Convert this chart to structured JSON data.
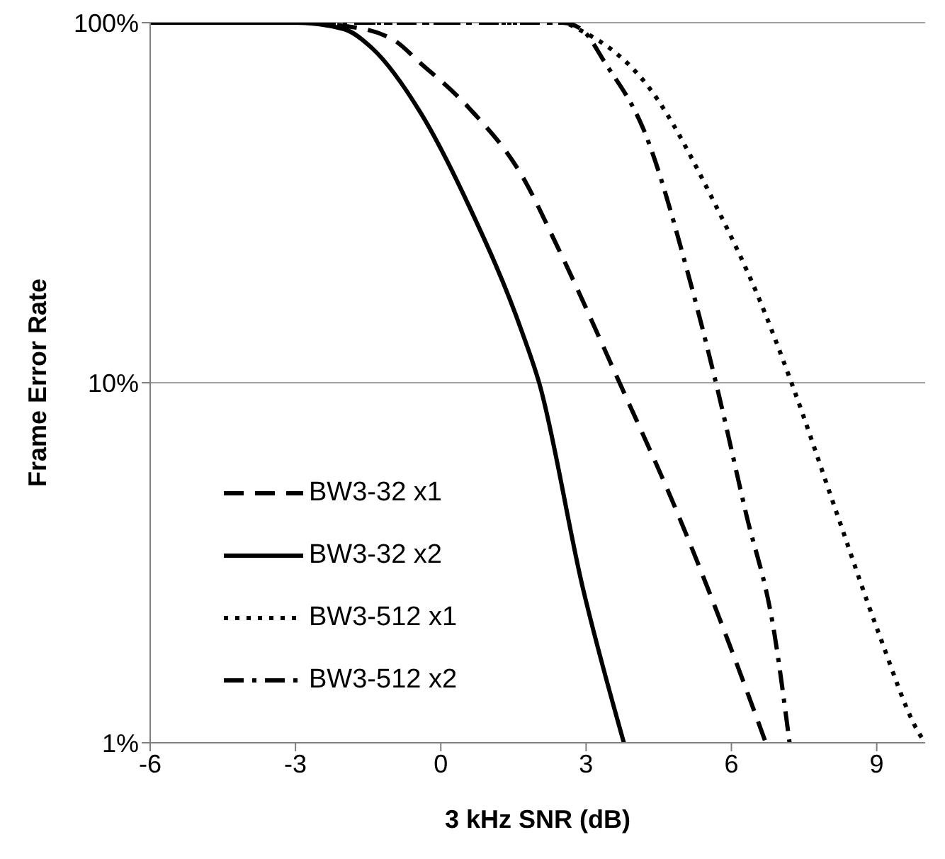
{
  "chart_data": {
    "type": "line",
    "xlabel": "3 kHz SNR (dB)",
    "ylabel": "Frame Error Rate",
    "log": "y",
    "grid": "y",
    "legend": "bottom left",
    "marker": "none",
    "xlim": [
      -6,
      10
    ],
    "xticks": [
      -6,
      -3,
      0,
      3,
      6,
      9
    ],
    "ylim": [
      1,
      100
    ],
    "yticks": [
      {
        "value": 1,
        "label": "1%"
      },
      {
        "value": 10,
        "label": "10%"
      },
      {
        "value": 100,
        "label": "100%"
      }
    ],
    "series": [
      {
        "name": "BW3-32 x1",
        "color": "#000000",
        "line_style": "dashed",
        "x": [
          -6,
          -3,
          -2,
          -1,
          -0.41,
          0.58,
          1.68,
          2.4,
          3.69,
          4.9,
          5.88,
          6.71
        ],
        "values": [
          100,
          100,
          98,
          90,
          77,
          58,
          37.5,
          24,
          10,
          4.3,
          2,
          1
        ]
      },
      {
        "name": "BW3-32 x2",
        "color": "#000000",
        "line_style": "solid",
        "x": [
          -6,
          -3,
          -2,
          -1.42,
          -0.41,
          0.58,
          1.68,
          2.03,
          2.93,
          3.78
        ],
        "values": [
          100,
          100,
          96,
          85,
          56,
          31,
          13.8,
          10,
          2.7,
          1
        ]
      },
      {
        "name": "BW3-512 x1",
        "color": "#000000",
        "line_style": "dotted",
        "x": [
          -6,
          2.5,
          2.9,
          4.3,
          5.68,
          6.58,
          7.24,
          8.16,
          9.05,
          9.86,
          10
        ],
        "values": [
          100,
          100,
          95,
          66,
          31,
          17,
          10,
          4.4,
          2,
          1.07,
          1
        ]
      },
      {
        "name": "BW3-512 x2",
        "color": "#000000",
        "line_style": "dashdot",
        "x": [
          -6,
          2.5,
          2.9,
          3.4,
          4.2,
          5.13,
          5.68,
          6.29,
          6.89,
          7.2
        ],
        "values": [
          100,
          100,
          96,
          77,
          50,
          19.5,
          10,
          4.4,
          2,
          1
        ]
      }
    ]
  }
}
